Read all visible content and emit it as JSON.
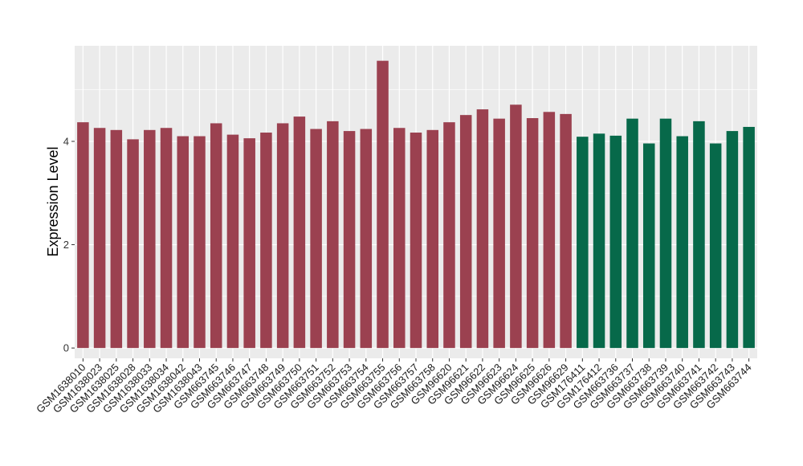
{
  "chart_data": {
    "type": "bar",
    "title": "",
    "xlabel": "",
    "ylabel": "Expression Level",
    "ylim": [
      -0.2,
      5.85
    ],
    "yticks": [
      0,
      2,
      4
    ],
    "grid": true,
    "legend": "none",
    "colors": {
      "group1": "#9B4150",
      "group2": "#07694A",
      "panel": "#EBEBEB",
      "grid": "#FFFFFF"
    },
    "categories": [
      "GSM1638010",
      "GSM1638023",
      "GSM1638025",
      "GSM1638028",
      "GSM1638033",
      "GSM1638034",
      "GSM1638042",
      "GSM1638043",
      "GSM663745",
      "GSM663746",
      "GSM663747",
      "GSM663748",
      "GSM663749",
      "GSM663750",
      "GSM663751",
      "GSM663752",
      "GSM663753",
      "GSM663754",
      "GSM663755",
      "GSM663756",
      "GSM663757",
      "GSM663758",
      "GSM96620",
      "GSM96621",
      "GSM96622",
      "GSM96623",
      "GSM96624",
      "GSM96625",
      "GSM96626",
      "GSM96629",
      "GSM176411",
      "GSM176412",
      "GSM663736",
      "GSM663737",
      "GSM663738",
      "GSM663739",
      "GSM663740",
      "GSM663741",
      "GSM663742",
      "GSM663743",
      "GSM663744"
    ],
    "values": [
      4.37,
      4.26,
      4.22,
      4.04,
      4.22,
      4.26,
      4.1,
      4.1,
      4.35,
      4.13,
      4.06,
      4.17,
      4.35,
      4.48,
      4.24,
      4.39,
      4.2,
      4.24,
      5.56,
      4.26,
      4.17,
      4.22,
      4.37,
      4.51,
      4.62,
      4.44,
      4.71,
      4.45,
      4.57,
      4.53,
      4.09,
      4.15,
      4.11,
      4.44,
      3.96,
      4.44,
      4.1,
      4.39,
      3.96,
      4.2,
      4.28
    ],
    "groups": [
      1,
      1,
      1,
      1,
      1,
      1,
      1,
      1,
      1,
      1,
      1,
      1,
      1,
      1,
      1,
      1,
      1,
      1,
      1,
      1,
      1,
      1,
      1,
      1,
      1,
      1,
      1,
      1,
      1,
      1,
      2,
      2,
      2,
      2,
      2,
      2,
      2,
      2,
      2,
      2,
      2
    ]
  }
}
